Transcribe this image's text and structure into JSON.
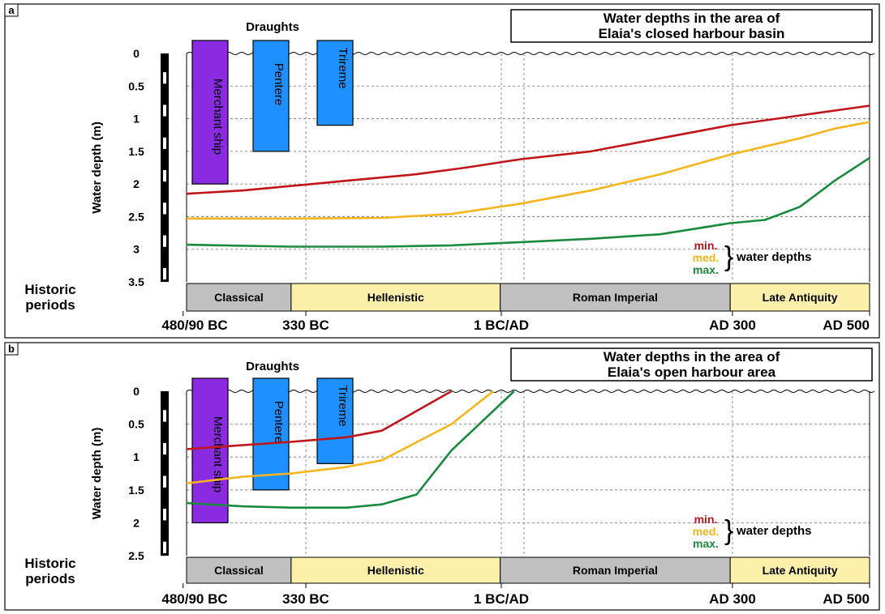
{
  "chart_data": [
    {
      "panel_label": "a",
      "type": "line",
      "title": "Water depths in the area of Elaia's closed harbour basin",
      "title_lines": [
        "Water depths in the area of",
        "Elaia's closed harbour basin"
      ],
      "ylabel": "Water depth (m)",
      "ylim": [
        0,
        3.5
      ],
      "y_ticks": [
        "0",
        "0.5",
        "1",
        "1.5",
        "2",
        "2.5",
        "3",
        "3.5"
      ],
      "x_ticks": [
        {
          "label": "480/90 BC",
          "year": -485
        },
        {
          "label": "330 BC",
          "year": -330
        },
        {
          "label": "1 BC/AD",
          "year": 0
        },
        {
          "label": "AD 300",
          "year": 300
        },
        {
          "label": "AD 500",
          "year": 500
        }
      ],
      "periods_label": [
        "Historic",
        "periods"
      ],
      "periods": [
        {
          "name": "Classical",
          "start": -480,
          "end": -330,
          "color": "#c0c0c0"
        },
        {
          "name": "Hellenistic",
          "start": -330,
          "end": -30,
          "color": "#fcefaa"
        },
        {
          "name": "Roman Imperial",
          "start": -30,
          "end": 300,
          "color": "#c0c0c0"
        },
        {
          "name": "Late Antiquity",
          "start": 300,
          "end": 500,
          "color": "#fcefaa"
        }
      ],
      "draughts_label": "Draughts",
      "draughts": [
        {
          "name": "Merchant ship",
          "depth": 2.0,
          "color": "#8a2be2"
        },
        {
          "name": "Pentere",
          "depth": 1.5,
          "color": "#1e90ff"
        },
        {
          "name": "Trireme",
          "depth": 1.1,
          "color": "#1e90ff"
        }
      ],
      "legend_suffix": "water depths",
      "series": [
        {
          "name": "min.",
          "color": "#c0161b",
          "x": [
            -480,
            -400,
            -330,
            -250,
            -150,
            -80,
            0,
            100,
            200,
            300,
            400,
            500
          ],
          "y": [
            2.15,
            2.1,
            2.03,
            1.95,
            1.85,
            1.75,
            1.62,
            1.5,
            1.3,
            1.1,
            0.95,
            0.8
          ]
        },
        {
          "name": "med.",
          "color": "#f5b51c",
          "x": [
            -480,
            -330,
            -200,
            -100,
            0,
            100,
            200,
            250,
            300,
            400,
            450,
            500
          ],
          "y": [
            2.53,
            2.53,
            2.52,
            2.46,
            2.3,
            2.1,
            1.85,
            1.7,
            1.55,
            1.3,
            1.15,
            1.05
          ]
        },
        {
          "name": "max.",
          "color": "#1a8a3e",
          "x": [
            -480,
            -330,
            -200,
            -100,
            0,
            100,
            200,
            300,
            350,
            400,
            450,
            500
          ],
          "y": [
            2.93,
            2.96,
            2.96,
            2.94,
            2.89,
            2.84,
            2.77,
            2.6,
            2.55,
            2.35,
            1.95,
            1.6
          ]
        }
      ]
    },
    {
      "panel_label": "b",
      "type": "line",
      "title": "Water depths in the area of Elaia's open harbour area",
      "title_lines": [
        "Water depths in the area of",
        "Elaia's open harbour area"
      ],
      "ylabel": "Water depth (m)",
      "ylim": [
        0,
        2.5
      ],
      "y_ticks": [
        "0",
        "0.5",
        "1",
        "1.5",
        "2",
        "2.5"
      ],
      "x_ticks": [
        {
          "label": "480/90 BC",
          "year": -485
        },
        {
          "label": "330 BC",
          "year": -330
        },
        {
          "label": "1 BC/AD",
          "year": 0
        },
        {
          "label": "AD 300",
          "year": 300
        },
        {
          "label": "AD 500",
          "year": 500
        }
      ],
      "periods_label": [
        "Historic",
        "periods"
      ],
      "periods": [
        {
          "name": "Classical",
          "start": -480,
          "end": -330,
          "color": "#c0c0c0"
        },
        {
          "name": "Hellenistic",
          "start": -330,
          "end": -30,
          "color": "#fcefaa"
        },
        {
          "name": "Roman Imperial",
          "start": -30,
          "end": 300,
          "color": "#c0c0c0"
        },
        {
          "name": "Late Antiquity",
          "start": 300,
          "end": 500,
          "color": "#fcefaa"
        }
      ],
      "draughts_label": "Draughts",
      "draughts": [
        {
          "name": "Merchant ship",
          "depth": 2.0,
          "color": "#8a2be2"
        },
        {
          "name": "Pentere",
          "depth": 1.5,
          "color": "#1e90ff"
        },
        {
          "name": "Trireme",
          "depth": 1.1,
          "color": "#1e90ff"
        }
      ],
      "legend_suffix": "water depths",
      "series": [
        {
          "name": "min.",
          "color": "#c0161b",
          "x": [
            -480,
            -400,
            -330,
            -250,
            -200,
            -150,
            -100
          ],
          "y": [
            0.88,
            0.82,
            0.77,
            0.7,
            0.6,
            0.3,
            0.0
          ]
        },
        {
          "name": "med.",
          "color": "#f5b51c",
          "x": [
            -480,
            -400,
            -330,
            -250,
            -200,
            -100,
            -40
          ],
          "y": [
            1.4,
            1.3,
            1.25,
            1.15,
            1.05,
            0.5,
            0.0
          ]
        },
        {
          "name": "max.",
          "color": "#1a8a3e",
          "x": [
            -480,
            -400,
            -330,
            -250,
            -200,
            -150,
            -100,
            -10
          ],
          "y": [
            1.7,
            1.75,
            1.77,
            1.77,
            1.72,
            1.57,
            0.9,
            0.0
          ]
        }
      ]
    }
  ]
}
